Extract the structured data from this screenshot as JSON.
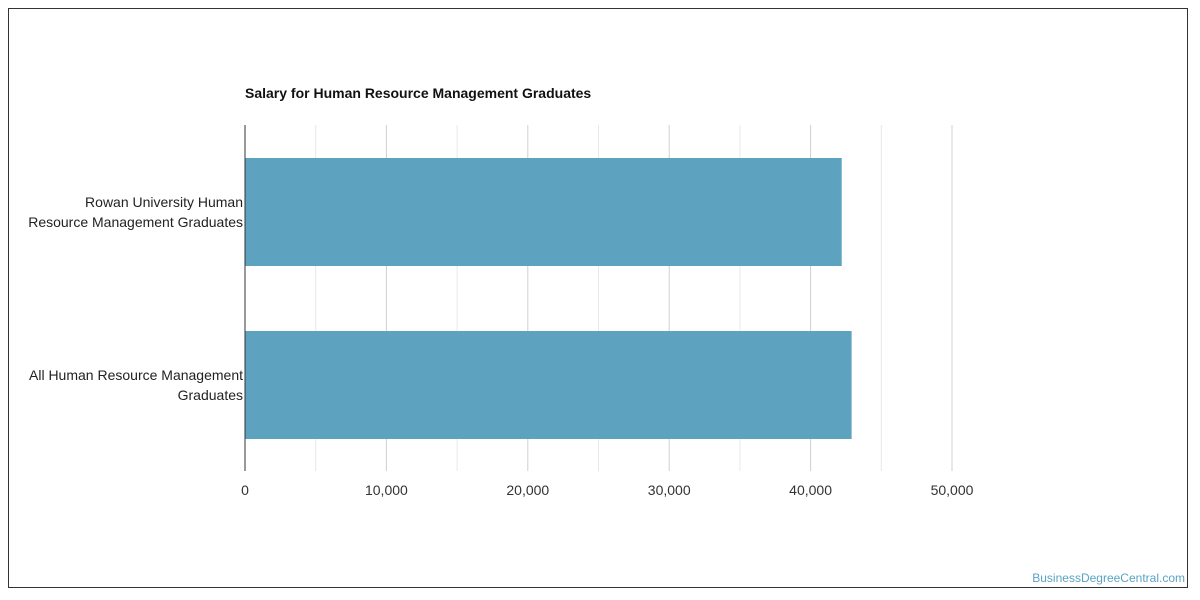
{
  "chart_data": {
    "type": "bar",
    "orientation": "horizontal",
    "title": "Salary for Human Resource Management Graduates",
    "categories": [
      [
        "Rowan University Human",
        "Resource Management Graduates"
      ],
      [
        "All Human Resource Management",
        "Graduates"
      ]
    ],
    "values": [
      42200,
      42900
    ],
    "xlim": [
      0,
      50000
    ],
    "xticks": [
      0,
      10000,
      20000,
      30000,
      40000,
      50000
    ],
    "xtick_labels": [
      "0",
      "10,000",
      "20,000",
      "30,000",
      "40,000",
      "50,000"
    ],
    "grid": true,
    "bar_color": "#5da2bf",
    "xlabel": "",
    "ylabel": ""
  },
  "watermark": "BusinessDegreeCentral.com"
}
